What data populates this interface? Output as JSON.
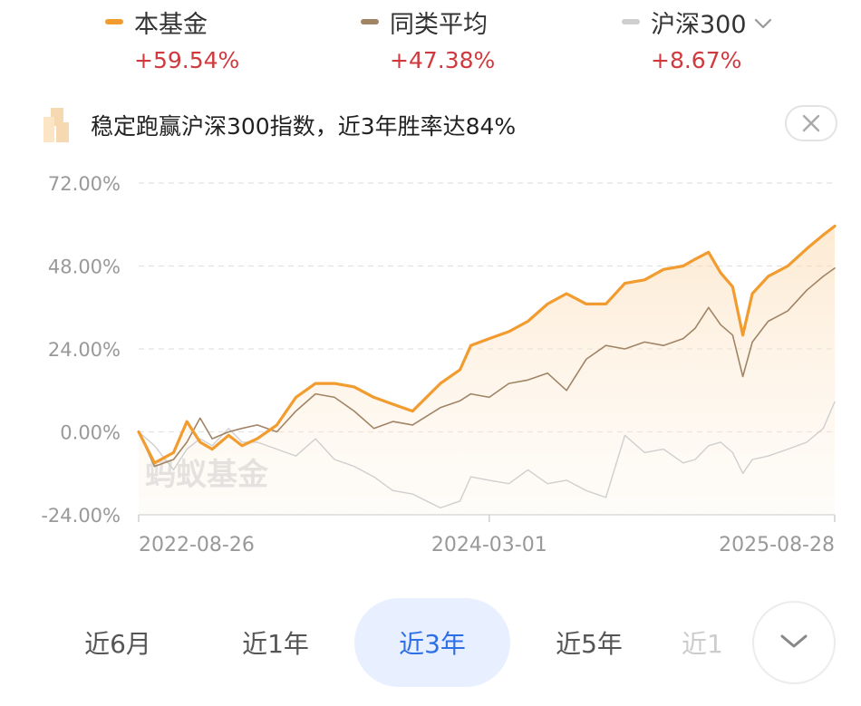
{
  "legend": [
    {
      "name": "本基金",
      "value": "+59.54%",
      "color": "#f29b2e"
    },
    {
      "name": "同类平均",
      "value": "+47.38%",
      "color": "#a08465"
    },
    {
      "name": "沪深300",
      "value": "+8.67%",
      "color": "#cfcfcf",
      "icon": "chevron-down-icon"
    }
  ],
  "banner": {
    "text": "稳定跑赢沪深300指数，近3年胜率达84%",
    "close_icon": "close-icon"
  },
  "watermark": "蚂蚁基金",
  "ranges": [
    {
      "label": "近6月",
      "active": false
    },
    {
      "label": "近1年",
      "active": false
    },
    {
      "label": "近3年",
      "active": true
    },
    {
      "label": "近5年",
      "active": false
    },
    {
      "label": "近1",
      "active": false
    }
  ],
  "expand_icon": "chevron-down-icon",
  "chart_data": {
    "type": "line",
    "y_ticks": [
      "72.00%",
      "48.00%",
      "24.00%",
      "0.00%",
      "-24.00%"
    ],
    "ylim": [
      -24,
      72
    ],
    "x_labels": [
      "2022-08-26",
      "2024-03-01",
      "2025-08-28"
    ],
    "x_range": [
      "2022-08-26",
      "2025-08-28"
    ],
    "grid": true,
    "series": [
      {
        "name": "本基金",
        "color": "#f29b2e",
        "final": 59.54,
        "points": [
          [
            "2022-08-26",
            0
          ],
          [
            "2022-09-20",
            -9
          ],
          [
            "2022-10-20",
            -6
          ],
          [
            "2022-11-10",
            3
          ],
          [
            "2022-12-01",
            -3
          ],
          [
            "2022-12-20",
            -5
          ],
          [
            "2023-01-15",
            -1
          ],
          [
            "2023-02-05",
            -4
          ],
          [
            "2023-03-01",
            -2
          ],
          [
            "2023-04-01",
            2
          ],
          [
            "2023-05-01",
            10
          ],
          [
            "2023-06-01",
            14
          ],
          [
            "2023-07-01",
            14
          ],
          [
            "2023-08-01",
            13
          ],
          [
            "2023-09-01",
            10
          ],
          [
            "2023-10-01",
            8
          ],
          [
            "2023-11-01",
            6
          ],
          [
            "2023-12-15",
            14
          ],
          [
            "2024-01-15",
            18
          ],
          [
            "2024-02-01",
            25
          ],
          [
            "2024-03-01",
            27
          ],
          [
            "2024-04-01",
            29
          ],
          [
            "2024-05-01",
            32
          ],
          [
            "2024-06-01",
            37
          ],
          [
            "2024-07-01",
            40
          ],
          [
            "2024-08-01",
            37
          ],
          [
            "2024-09-01",
            37
          ],
          [
            "2024-10-01",
            43
          ],
          [
            "2024-11-01",
            44
          ],
          [
            "2024-12-01",
            47
          ],
          [
            "2025-01-01",
            48
          ],
          [
            "2025-01-20",
            50
          ],
          [
            "2025-02-10",
            52
          ],
          [
            "2025-03-01",
            46
          ],
          [
            "2025-03-20",
            42
          ],
          [
            "2025-04-05",
            28
          ],
          [
            "2025-04-20",
            40
          ],
          [
            "2025-05-15",
            45
          ],
          [
            "2025-06-15",
            48
          ],
          [
            "2025-07-15",
            53
          ],
          [
            "2025-08-10",
            57
          ],
          [
            "2025-08-28",
            59.54
          ]
        ]
      },
      {
        "name": "同类平均",
        "color": "#a08465",
        "final": 47.38,
        "points": [
          [
            "2022-08-26",
            0
          ],
          [
            "2022-09-20",
            -10
          ],
          [
            "2022-10-20",
            -8
          ],
          [
            "2022-11-10",
            -3
          ],
          [
            "2022-12-01",
            4
          ],
          [
            "2022-12-20",
            -2
          ],
          [
            "2023-01-15",
            0
          ],
          [
            "2023-02-05",
            1
          ],
          [
            "2023-03-01",
            2
          ],
          [
            "2023-04-01",
            0
          ],
          [
            "2023-05-01",
            6
          ],
          [
            "2023-06-01",
            11
          ],
          [
            "2023-07-01",
            10
          ],
          [
            "2023-08-01",
            6
          ],
          [
            "2023-09-01",
            1
          ],
          [
            "2023-10-01",
            3
          ],
          [
            "2023-11-01",
            2
          ],
          [
            "2023-12-15",
            7
          ],
          [
            "2024-01-15",
            9
          ],
          [
            "2024-02-01",
            11
          ],
          [
            "2024-03-01",
            10
          ],
          [
            "2024-04-01",
            14
          ],
          [
            "2024-05-01",
            15
          ],
          [
            "2024-06-01",
            17
          ],
          [
            "2024-07-01",
            12
          ],
          [
            "2024-08-01",
            21
          ],
          [
            "2024-09-01",
            25
          ],
          [
            "2024-10-01",
            24
          ],
          [
            "2024-11-01",
            26
          ],
          [
            "2024-12-01",
            25
          ],
          [
            "2025-01-01",
            27
          ],
          [
            "2025-01-20",
            30
          ],
          [
            "2025-02-10",
            36
          ],
          [
            "2025-03-01",
            31
          ],
          [
            "2025-03-20",
            28
          ],
          [
            "2025-04-05",
            16
          ],
          [
            "2025-04-20",
            26
          ],
          [
            "2025-05-15",
            32
          ],
          [
            "2025-06-15",
            35
          ],
          [
            "2025-07-15",
            41
          ],
          [
            "2025-08-10",
            45
          ],
          [
            "2025-08-28",
            47.38
          ]
        ]
      },
      {
        "name": "沪深300",
        "color": "#cfcfcf",
        "final": 8.67,
        "points": [
          [
            "2022-08-26",
            0
          ],
          [
            "2022-09-20",
            -4
          ],
          [
            "2022-10-20",
            -11
          ],
          [
            "2022-11-10",
            -5
          ],
          [
            "2022-12-01",
            -2
          ],
          [
            "2022-12-20",
            -4
          ],
          [
            "2023-01-15",
            1
          ],
          [
            "2023-02-05",
            -3
          ],
          [
            "2023-03-01",
            -3
          ],
          [
            "2023-04-01",
            -5
          ],
          [
            "2023-05-01",
            -7
          ],
          [
            "2023-06-01",
            -2
          ],
          [
            "2023-07-01",
            -8
          ],
          [
            "2023-08-01",
            -10
          ],
          [
            "2023-09-01",
            -13
          ],
          [
            "2023-10-01",
            -17
          ],
          [
            "2023-11-01",
            -18
          ],
          [
            "2023-12-15",
            -22
          ],
          [
            "2024-01-15",
            -20
          ],
          [
            "2024-02-01",
            -13
          ],
          [
            "2024-03-01",
            -14
          ],
          [
            "2024-04-01",
            -15
          ],
          [
            "2024-05-01",
            -11
          ],
          [
            "2024-06-01",
            -15
          ],
          [
            "2024-07-01",
            -14
          ],
          [
            "2024-08-01",
            -17
          ],
          [
            "2024-09-01",
            -19
          ],
          [
            "2024-10-01",
            -1
          ],
          [
            "2024-11-01",
            -6
          ],
          [
            "2024-12-01",
            -5
          ],
          [
            "2025-01-01",
            -9
          ],
          [
            "2025-01-20",
            -8
          ],
          [
            "2025-02-10",
            -4
          ],
          [
            "2025-03-01",
            -3
          ],
          [
            "2025-03-20",
            -6
          ],
          [
            "2025-04-05",
            -12
          ],
          [
            "2025-04-20",
            -8
          ],
          [
            "2025-05-15",
            -7
          ],
          [
            "2025-06-15",
            -5
          ],
          [
            "2025-07-15",
            -3
          ],
          [
            "2025-08-10",
            1
          ],
          [
            "2025-08-28",
            8.67
          ]
        ]
      }
    ]
  }
}
